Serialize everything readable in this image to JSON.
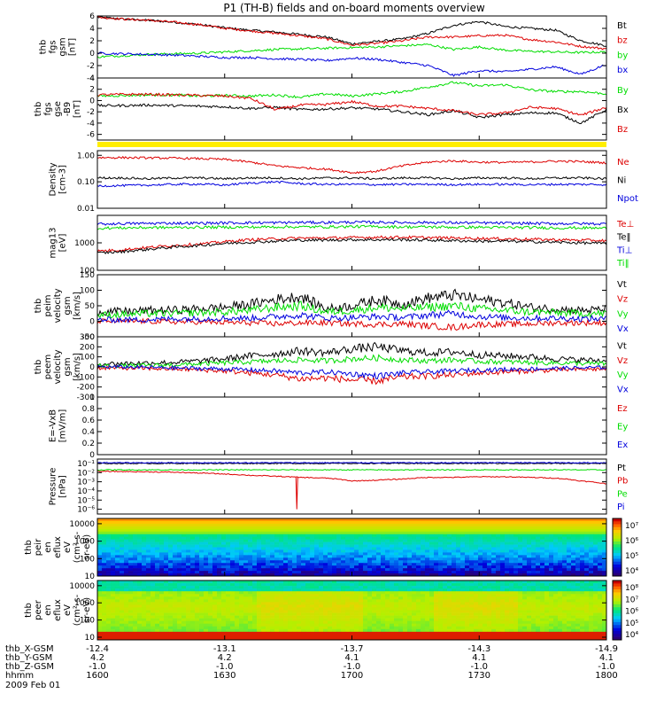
{
  "title": "P1 (TH-B) fields and on-board moments overview",
  "date_label": "2009 Feb 01",
  "colors": {
    "black": "#000000",
    "red": "#dd0000",
    "green": "#00dd00",
    "blue": "#0000dd",
    "yellow": "#ffee00"
  },
  "chart_data": [
    {
      "id": "fgs",
      "type": "line",
      "ylabel": [
        "thb",
        "fgs",
        "gsm",
        "[nT]"
      ],
      "ylim": [
        -4,
        6
      ],
      "ticks": [
        6,
        4,
        2,
        0,
        -2,
        -4
      ],
      "series": [
        {
          "name": "Bt",
          "color": "black",
          "values": [
            5.8,
            5.5,
            5.3,
            5.0,
            4.6,
            4.1,
            3.7,
            3.4,
            3.0,
            2.6,
            1.5,
            1.9,
            2.3,
            3.2,
            4.5,
            5.1,
            4.3,
            4.0,
            3.7,
            2.0,
            1.2
          ]
        },
        {
          "name": "bz",
          "color": "red",
          "values": [
            5.8,
            5.5,
            5.3,
            5.0,
            4.6,
            4.0,
            3.6,
            3.2,
            2.8,
            2.3,
            1.3,
            1.6,
            2.0,
            2.6,
            2.6,
            2.8,
            2.9,
            2.2,
            1.8,
            1.1,
            0.7
          ]
        },
        {
          "name": "by",
          "color": "green",
          "values": [
            -0.6,
            -0.4,
            -0.2,
            -0.1,
            0.0,
            0.2,
            0.4,
            0.6,
            0.7,
            0.8,
            0.9,
            1.0,
            1.2,
            1.4,
            0.6,
            1.0,
            0.5,
            0.3,
            0.2,
            0.1,
            0.2
          ]
        },
        {
          "name": "bx",
          "color": "blue",
          "values": [
            0.0,
            -0.1,
            -0.2,
            -0.3,
            -0.5,
            -0.7,
            -0.7,
            -0.9,
            -1.0,
            -1.2,
            -0.8,
            -1.0,
            -1.5,
            -2.0,
            -3.6,
            -2.8,
            -3.0,
            -2.6,
            -2.2,
            -3.4,
            -1.8
          ]
        }
      ]
    },
    {
      "id": "fgs2",
      "type": "line",
      "ylabel": [
        "thb",
        "fgs",
        "gse",
        "-B9",
        "[nT]"
      ],
      "ylim": [
        -7,
        4
      ],
      "ticks": [
        4,
        2,
        0,
        -2,
        -4,
        -6
      ],
      "series": [
        {
          "name": "By",
          "color": "green",
          "values": [
            0.8,
            0.9,
            1.0,
            1.0,
            0.8,
            0.9,
            0.8,
            1.0,
            0.6,
            1.2,
            0.8,
            1.2,
            1.6,
            2.4,
            3.2,
            2.6,
            2.8,
            1.9,
            1.6,
            1.6,
            1.2
          ]
        },
        {
          "name": "Bx",
          "color": "black",
          "values": [
            -0.9,
            -0.9,
            -0.8,
            -0.9,
            -1.0,
            -1.1,
            -1.4,
            -1.2,
            -1.6,
            -1.5,
            -1.3,
            -1.5,
            -2.0,
            -2.5,
            -1.8,
            -3.0,
            -2.5,
            -2.2,
            -2.2,
            -4.0,
            -1.6
          ]
        },
        {
          "name": "Bz",
          "color": "red",
          "values": [
            1.0,
            1.1,
            1.1,
            1.0,
            0.9,
            0.8,
            0.4,
            -1.6,
            -0.8,
            -0.7,
            -0.2,
            -1.0,
            -1.0,
            -1.4,
            -1.8,
            -2.5,
            -2.2,
            -1.2,
            -1.4,
            -2.6,
            -1.2
          ]
        }
      ]
    },
    {
      "id": "density",
      "type": "line",
      "scale": "log",
      "ylabel": [
        "Density",
        "[cm-3]"
      ],
      "ylim": [
        0.01,
        1.5
      ],
      "ticks": [
        1.0,
        0.1,
        0.01
      ],
      "tick_labels": [
        "1.00",
        "0.10",
        "0.01"
      ],
      "series": [
        {
          "name": "Ne",
          "color": "red",
          "values": [
            0.82,
            0.82,
            0.8,
            0.78,
            0.75,
            0.7,
            0.55,
            0.4,
            0.34,
            0.3,
            0.22,
            0.25,
            0.4,
            0.55,
            0.62,
            0.55,
            0.54,
            0.56,
            0.6,
            0.58,
            0.52
          ]
        },
        {
          "name": "Ni",
          "color": "black",
          "values": [
            0.14,
            0.14,
            0.13,
            0.14,
            0.14,
            0.13,
            0.14,
            0.14,
            0.13,
            0.14,
            0.14,
            0.13,
            0.14,
            0.14,
            0.13,
            0.14,
            0.14,
            0.13,
            0.14,
            0.14,
            0.13
          ]
        },
        {
          "name": "Npot",
          "color": "blue",
          "values": [
            0.07,
            0.072,
            0.075,
            0.08,
            0.082,
            0.075,
            0.09,
            0.1,
            0.085,
            0.08,
            0.08,
            0.078,
            0.08,
            0.08,
            0.078,
            0.08,
            0.08,
            0.078,
            0.08,
            0.08,
            0.078
          ]
        }
      ]
    },
    {
      "id": "temp",
      "type": "line",
      "scale": "log",
      "ylabel": [
        "mag13",
        "[eV]"
      ],
      "ylim": [
        100,
        10000
      ],
      "ticks": [
        1000,
        100
      ],
      "tick_labels": [
        "1000",
        "100"
      ],
      "series": [
        {
          "name": "Te⊥",
          "color": "red",
          "values": [
            500,
            560,
            680,
            800,
            900,
            1100,
            1300,
            1400,
            1500,
            1500,
            1550,
            1600,
            1600,
            1550,
            1500,
            1450,
            1400,
            1350,
            1300,
            1250,
            1200
          ]
        },
        {
          "name": "Te‖",
          "color": "black",
          "values": [
            420,
            480,
            580,
            700,
            800,
            950,
            1050,
            1150,
            1250,
            1250,
            1300,
            1300,
            1300,
            1250,
            1200,
            1150,
            1150,
            1100,
            1050,
            1000,
            950
          ]
        },
        {
          "name": "Ti⊥",
          "color": "blue",
          "values": [
            4800,
            5000,
            5100,
            5200,
            5200,
            5300,
            5400,
            5400,
            5500,
            5500,
            5600,
            5600,
            5500,
            5500,
            5400,
            5300,
            5200,
            5100,
            5000,
            5000,
            4900
          ]
        },
        {
          "name": "Ti‖",
          "color": "green",
          "values": [
            3400,
            3500,
            3600,
            3600,
            3700,
            3700,
            3700,
            3800,
            3800,
            3800,
            3900,
            3900,
            3800,
            3800,
            3700,
            3700,
            3600,
            3600,
            3500,
            3500,
            3400
          ]
        }
      ]
    },
    {
      "id": "peim",
      "type": "line",
      "ylabel": [
        "thb",
        "peim",
        "velocity",
        "gsm",
        "[km/s]"
      ],
      "ylim": [
        -50,
        150
      ],
      "ticks": [
        150,
        100,
        50,
        0,
        -50
      ],
      "series": [
        {
          "name": "Vt",
          "color": "black",
          "values": [
            30,
            32,
            35,
            36,
            40,
            45,
            55,
            70,
            80,
            40,
            50,
            70,
            55,
            75,
            85,
            70,
            60,
            45,
            40,
            35,
            38
          ]
        },
        {
          "name": "Vz",
          "color": "red",
          "values": [
            0,
            0,
            0,
            -2,
            -2,
            -4,
            -5,
            -8,
            -5,
            -5,
            -8,
            -10,
            -8,
            -15,
            -20,
            -10,
            -10,
            -8,
            -5,
            -5,
            -5
          ]
        },
        {
          "name": "Vy",
          "color": "green",
          "values": [
            20,
            22,
            25,
            25,
            28,
            30,
            35,
            45,
            50,
            30,
            35,
            45,
            40,
            45,
            50,
            40,
            35,
            30,
            28,
            25,
            25
          ]
        },
        {
          "name": "Vx",
          "color": "blue",
          "values": [
            5,
            5,
            5,
            8,
            8,
            10,
            10,
            15,
            20,
            10,
            12,
            15,
            12,
            20,
            25,
            15,
            12,
            10,
            10,
            8,
            8
          ]
        }
      ]
    },
    {
      "id": "peem",
      "type": "line",
      "ylabel": [
        "thb",
        "peem",
        "velocity",
        "gsm",
        "[km/s]"
      ],
      "ylim": [
        -300,
        300
      ],
      "ticks": [
        300,
        200,
        100,
        0,
        -100,
        -200,
        -300
      ],
      "series": [
        {
          "name": "Vt",
          "color": "black",
          "values": [
            30,
            35,
            40,
            45,
            60,
            80,
            110,
            130,
            160,
            140,
            180,
            200,
            160,
            140,
            150,
            120,
            110,
            100,
            80,
            70,
            60
          ]
        },
        {
          "name": "Vz",
          "color": "red",
          "values": [
            -10,
            -12,
            -15,
            -20,
            -30,
            -40,
            -60,
            -80,
            -120,
            -110,
            -130,
            -140,
            -100,
            -90,
            -80,
            -60,
            -50,
            -40,
            -30,
            -25,
            -20
          ]
        },
        {
          "name": "Vy",
          "color": "green",
          "values": [
            10,
            12,
            15,
            20,
            30,
            40,
            50,
            60,
            70,
            60,
            80,
            90,
            70,
            60,
            70,
            55,
            50,
            45,
            40,
            35,
            30
          ]
        },
        {
          "name": "Vx",
          "color": "blue",
          "values": [
            0,
            0,
            -5,
            -10,
            -15,
            -20,
            -30,
            -40,
            -60,
            -50,
            -70,
            -90,
            -60,
            -50,
            -40,
            -30,
            -25,
            -20,
            -15,
            -10,
            -5
          ]
        }
      ]
    },
    {
      "id": "efield",
      "type": "line",
      "ylabel": [
        "E=-VxB",
        "[mV/m]"
      ],
      "ylim": [
        0,
        1.0
      ],
      "ticks": [
        1.0,
        0.8,
        0.6,
        0.4,
        0.2,
        0.0
      ],
      "series": [
        {
          "name": "Ez",
          "color": "red",
          "values": []
        },
        {
          "name": "Ey",
          "color": "green",
          "values": []
        },
        {
          "name": "Ex",
          "color": "blue",
          "values": []
        }
      ]
    },
    {
      "id": "pressure",
      "type": "line",
      "scale": "log",
      "ylabel": [
        "Pressure",
        "[nPa]"
      ],
      "ylim": [
        3e-07,
        0.3
      ],
      "ticks": [
        0.1,
        0.01,
        0.001,
        0.0001,
        1e-05,
        1e-06
      ],
      "tick_labels": [
        "10⁻¹",
        "10⁻²",
        "10⁻³",
        "10⁻⁴",
        "10⁻⁵",
        "10⁻⁶"
      ],
      "series": [
        {
          "name": "Pt",
          "color": "black",
          "values": [
            0.1,
            0.1,
            0.1,
            0.1,
            0.1,
            0.1,
            0.1,
            0.1,
            0.1,
            0.1,
            0.1,
            0.1,
            0.1,
            0.1,
            0.1,
            0.1,
            0.1,
            0.1,
            0.1,
            0.1,
            0.1
          ]
        },
        {
          "name": "Pb",
          "color": "red",
          "values": [
            0.014,
            0.013,
            0.012,
            0.011,
            0.009,
            0.007,
            0.005,
            0.004,
            0.003,
            0.0025,
            0.0012,
            0.0015,
            0.002,
            0.003,
            0.003,
            0.0035,
            0.0035,
            0.003,
            0.0025,
            0.0012,
            0.0006
          ]
        },
        {
          "name": "Pe",
          "color": "green",
          "values": [
            0.02,
            0.02,
            0.02,
            0.02,
            0.02,
            0.02,
            0.02,
            0.02,
            0.02,
            0.02,
            0.02,
            0.02,
            0.02,
            0.02,
            0.02,
            0.02,
            0.02,
            0.02,
            0.02,
            0.02,
            0.02
          ]
        },
        {
          "name": "Pi",
          "color": "blue",
          "values": [
            0.12,
            0.12,
            0.12,
            0.12,
            0.12,
            0.12,
            0.12,
            0.12,
            0.12,
            0.12,
            0.12,
            0.12,
            0.12,
            0.12,
            0.12,
            0.12,
            0.12,
            0.12,
            0.12,
            0.12,
            0.12
          ]
        }
      ]
    },
    {
      "id": "peir",
      "type": "heatmap",
      "scale": "log",
      "ylabel": [
        "thb",
        "peir",
        "en",
        "eflux",
        "eV",
        "(cm²-s-",
        "sr-eV)"
      ],
      "ylim": [
        10,
        20000
      ],
      "ticks": [
        10000,
        1000,
        100,
        10
      ],
      "tick_labels": [
        "10000",
        "1000",
        "100",
        "10"
      ],
      "colorbar": {
        "ticks": [
          "10⁷",
          "10⁶",
          "10⁵",
          "10⁴"
        ],
        "range": [
          3000,
          10000000
        ]
      }
    },
    {
      "id": "peer",
      "type": "heatmap",
      "scale": "log",
      "ylabel": [
        "thb",
        "peer",
        "en",
        "eflux",
        "eV",
        "(cm²-s-",
        "sr-eV)"
      ],
      "ylim": [
        7,
        20000
      ],
      "ticks": [
        10000,
        1000,
        100,
        10
      ],
      "tick_labels": [
        "10000",
        "1000",
        "100",
        "10"
      ],
      "colorbar": {
        "ticks": [
          "10⁸",
          "10⁷",
          "10⁶",
          "10⁵",
          "10⁴"
        ],
        "range": [
          3000,
          100000000
        ]
      }
    }
  ],
  "xaxis": {
    "rows": [
      {
        "label": "thb_X-GSM",
        "values": [
          "-12.4",
          "-13.1",
          "-13.7",
          "-14.3",
          "-14.9"
        ]
      },
      {
        "label": "thb_Y-GSM",
        "values": [
          "4.2",
          "4.2",
          "4.1",
          "4.1",
          "4.1"
        ]
      },
      {
        "label": "thb_Z-GSM",
        "values": [
          "-1.0",
          "-1.0",
          "-1.0",
          "-1.0",
          "-1.0"
        ]
      },
      {
        "label": "hhmm",
        "values": [
          "1600",
          "1630",
          "1700",
          "1730",
          "1800"
        ]
      }
    ]
  }
}
